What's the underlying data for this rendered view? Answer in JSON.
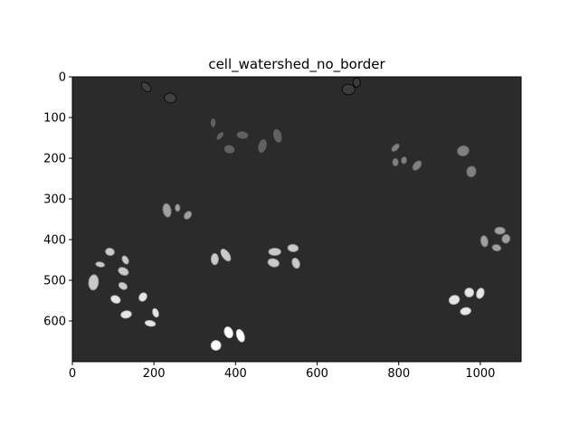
{
  "chart_data": {
    "type": "image",
    "title": "cell_watershed_no_border",
    "xlim": [
      0,
      1100
    ],
    "ylim": [
      700,
      0
    ],
    "xticks": [
      0,
      200,
      400,
      600,
      800,
      1000
    ],
    "yticks": [
      0,
      100,
      200,
      300,
      400,
      500,
      600
    ],
    "background_color": "#2b2b2b",
    "cells": [
      {
        "x": 181,
        "y": 25,
        "w": 18,
        "h": 28,
        "angle": -45,
        "level": 0.1
      },
      {
        "x": 240,
        "y": 52,
        "w": 30,
        "h": 24,
        "angle": 10,
        "level": 0.1
      },
      {
        "x": 677,
        "y": 31,
        "w": 32,
        "h": 26,
        "angle": 0,
        "level": 0.08
      },
      {
        "x": 697,
        "y": 14,
        "w": 18,
        "h": 22,
        "angle": 0,
        "level": 0.08
      },
      {
        "x": 345,
        "y": 113,
        "w": 14,
        "h": 24,
        "angle": 0,
        "level": 0.25
      },
      {
        "x": 362,
        "y": 145,
        "w": 14,
        "h": 24,
        "angle": 40,
        "level": 0.25
      },
      {
        "x": 385,
        "y": 178,
        "w": 28,
        "h": 22,
        "angle": 10,
        "level": 0.25
      },
      {
        "x": 417,
        "y": 143,
        "w": 30,
        "h": 20,
        "angle": 5,
        "level": 0.25
      },
      {
        "x": 466,
        "y": 170,
        "w": 22,
        "h": 36,
        "angle": 15,
        "level": 0.25
      },
      {
        "x": 503,
        "y": 145,
        "w": 22,
        "h": 36,
        "angle": -15,
        "level": 0.25
      },
      {
        "x": 792,
        "y": 174,
        "w": 14,
        "h": 24,
        "angle": 45,
        "level": 0.4
      },
      {
        "x": 792,
        "y": 210,
        "w": 15,
        "h": 20,
        "angle": 0,
        "level": 0.4
      },
      {
        "x": 813,
        "y": 205,
        "w": 14,
        "h": 18,
        "angle": 10,
        "level": 0.4
      },
      {
        "x": 845,
        "y": 218,
        "w": 18,
        "h": 28,
        "angle": 40,
        "level": 0.4
      },
      {
        "x": 958,
        "y": 182,
        "w": 30,
        "h": 26,
        "angle": -15,
        "level": 0.4
      },
      {
        "x": 978,
        "y": 233,
        "w": 24,
        "h": 28,
        "angle": 10,
        "level": 0.4
      },
      {
        "x": 232,
        "y": 328,
        "w": 20,
        "h": 34,
        "angle": -10,
        "level": 0.55
      },
      {
        "x": 258,
        "y": 322,
        "w": 12,
        "h": 18,
        "angle": 0,
        "level": 0.55
      },
      {
        "x": 283,
        "y": 340,
        "w": 16,
        "h": 22,
        "angle": 40,
        "level": 0.55
      },
      {
        "x": 1048,
        "y": 378,
        "w": 26,
        "h": 18,
        "angle": 0,
        "level": 0.55
      },
      {
        "x": 1063,
        "y": 398,
        "w": 20,
        "h": 22,
        "angle": 20,
        "level": 0.55
      },
      {
        "x": 1010,
        "y": 404,
        "w": 18,
        "h": 28,
        "angle": -10,
        "level": 0.55
      },
      {
        "x": 1040,
        "y": 420,
        "w": 22,
        "h": 16,
        "angle": 10,
        "level": 0.55
      },
      {
        "x": 92,
        "y": 430,
        "w": 22,
        "h": 18,
        "angle": 10,
        "level": 0.75
      },
      {
        "x": 68,
        "y": 461,
        "w": 22,
        "h": 12,
        "angle": 10,
        "level": 0.75
      },
      {
        "x": 130,
        "y": 450,
        "w": 14,
        "h": 22,
        "angle": -30,
        "level": 0.75
      },
      {
        "x": 125,
        "y": 478,
        "w": 26,
        "h": 18,
        "angle": 25,
        "level": 0.75
      },
      {
        "x": 52,
        "y": 505,
        "w": 24,
        "h": 38,
        "angle": 5,
        "level": 0.75
      },
      {
        "x": 124,
        "y": 514,
        "w": 22,
        "h": 16,
        "angle": 30,
        "level": 0.75
      },
      {
        "x": 349,
        "y": 448,
        "w": 18,
        "h": 28,
        "angle": 0,
        "level": 0.75
      },
      {
        "x": 376,
        "y": 438,
        "w": 18,
        "h": 34,
        "angle": -35,
        "level": 0.75
      },
      {
        "x": 496,
        "y": 430,
        "w": 30,
        "h": 18,
        "angle": 0,
        "level": 0.75
      },
      {
        "x": 493,
        "y": 457,
        "w": 28,
        "h": 20,
        "angle": 15,
        "level": 0.75
      },
      {
        "x": 541,
        "y": 421,
        "w": 26,
        "h": 18,
        "angle": 5,
        "level": 0.75
      },
      {
        "x": 548,
        "y": 458,
        "w": 18,
        "h": 26,
        "angle": -20,
        "level": 0.75
      },
      {
        "x": 173,
        "y": 541,
        "w": 18,
        "h": 22,
        "angle": 35,
        "level": 0.88
      },
      {
        "x": 106,
        "y": 547,
        "w": 24,
        "h": 18,
        "angle": 25,
        "level": 0.88
      },
      {
        "x": 132,
        "y": 584,
        "w": 26,
        "h": 18,
        "angle": -10,
        "level": 0.88
      },
      {
        "x": 204,
        "y": 580,
        "w": 14,
        "h": 22,
        "angle": -20,
        "level": 0.88
      },
      {
        "x": 191,
        "y": 606,
        "w": 26,
        "h": 14,
        "angle": 10,
        "level": 0.88
      },
      {
        "x": 936,
        "y": 548,
        "w": 26,
        "h": 22,
        "angle": -20,
        "level": 0.88
      },
      {
        "x": 973,
        "y": 530,
        "w": 22,
        "h": 22,
        "angle": 0,
        "level": 0.88
      },
      {
        "x": 1000,
        "y": 532,
        "w": 18,
        "h": 26,
        "angle": 20,
        "level": 0.88
      },
      {
        "x": 964,
        "y": 576,
        "w": 26,
        "h": 18,
        "angle": -10,
        "level": 0.88
      },
      {
        "x": 383,
        "y": 628,
        "w": 20,
        "h": 28,
        "angle": -20,
        "level": 1.0
      },
      {
        "x": 412,
        "y": 636,
        "w": 18,
        "h": 32,
        "angle": -20,
        "level": 1.0
      },
      {
        "x": 352,
        "y": 660,
        "w": 24,
        "h": 24,
        "angle": 20,
        "level": 1.0
      }
    ]
  }
}
